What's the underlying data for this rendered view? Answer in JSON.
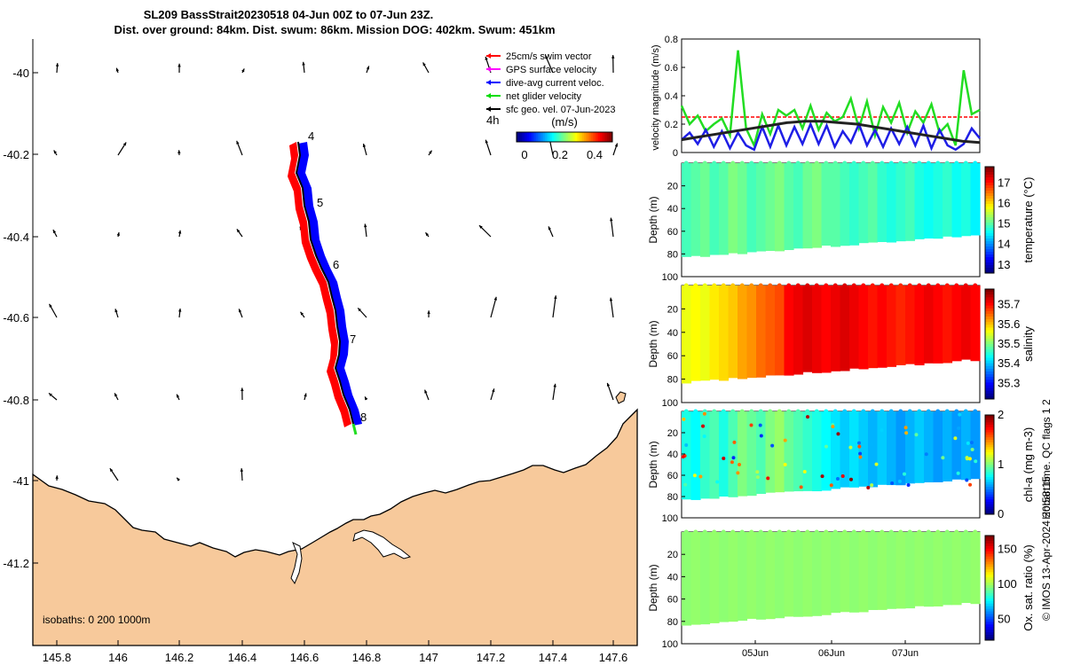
{
  "header": {
    "title_line1": "SL209 BassStrait20230518 04-Jun 00Z to 07-Jun 23Z.",
    "title_line2": "Dist. over ground: 84km. Dist. swum: 86km. Mission DOG: 402km. Swum: 451km"
  },
  "map": {
    "legend": [
      {
        "label": "25cm/s swim vector",
        "color": "#ff0000"
      },
      {
        "label": "GPS surface velocity",
        "color": "#ff00ff"
      },
      {
        "label": "dive-avg current veloc.",
        "color": "#0000ff"
      },
      {
        "label": "net glider velocity",
        "color": "#00dd00"
      },
      {
        "label": "sfc geo. vel. 07-Jun-2023",
        "color": "#000000"
      }
    ],
    "colorbar": {
      "interval": "4h",
      "units": "(m/s)",
      "ticks": [
        "0",
        "0.2",
        "0.4"
      ]
    },
    "day_markers": [
      "4",
      "5",
      "6",
      "7",
      "8"
    ],
    "x_ticks": [
      "145.8",
      "146",
      "146.2",
      "146.4",
      "146.6",
      "146.8",
      "147",
      "147.2",
      "147.4",
      "147.6"
    ],
    "y_ticks": [
      "-40",
      "-40.2",
      "-40.4",
      "-40.6",
      "-40.8",
      "-41",
      "-41.2"
    ],
    "isobaths": "isobaths: 0   200  1000m",
    "land_color": "#f7c99b"
  },
  "chart_data": [
    {
      "type": "line",
      "title": "velocity magnitude",
      "ylabel": "velocity magnitude (m/s)",
      "ylim": [
        0,
        0.8
      ],
      "yticks": [
        "0",
        "0.2",
        "0.4",
        "0.6",
        "0.8"
      ],
      "series": [
        {
          "name": "25cm/s reference",
          "color": "#ff0000",
          "values": [
            0.25,
            0.25
          ]
        },
        {
          "name": "net glider velocity",
          "color": "#22dd22",
          "values": [
            0.33,
            0.2,
            0.26,
            0.15,
            0.2,
            0.24,
            0.12,
            0.72,
            0.17,
            0.05,
            0.27,
            0.13,
            0.3,
            0.26,
            0.3,
            0.17,
            0.33,
            0.16,
            0.28,
            0.22,
            0.25,
            0.38,
            0.17,
            0.36,
            0.12,
            0.32,
            0.21,
            0.35,
            0.14,
            0.29,
            0.21,
            0.34,
            0.14,
            0.2,
            0.05,
            0.58,
            0.27,
            0.3
          ]
        },
        {
          "name": "dive-avg current",
          "color": "#1e1ee6",
          "values": [
            0.09,
            0.14,
            0.06,
            0.16,
            0.04,
            0.15,
            0.03,
            0.14,
            0.05,
            0.02,
            0.18,
            0.04,
            0.19,
            0.05,
            0.18,
            0.06,
            0.2,
            0.06,
            0.19,
            0.04,
            0.15,
            0.07,
            0.2,
            0.05,
            0.16,
            0.04,
            0.17,
            0.06,
            0.18,
            0.05,
            0.19,
            0.03,
            0.16,
            0.05,
            0.02,
            0.06,
            0.17,
            0.1
          ]
        },
        {
          "name": "sfc geo. vel.",
          "color": "#222222",
          "values": [
            0.09,
            0.11,
            0.13,
            0.15,
            0.17,
            0.19,
            0.21,
            0.22,
            0.22,
            0.21,
            0.2,
            0.18,
            0.16,
            0.14,
            0.12,
            0.1,
            0.08,
            0.07
          ]
        }
      ]
    },
    {
      "type": "heatmap",
      "title": "temperature",
      "ylabel": "Depth (m)",
      "yticks": [
        "20",
        "40",
        "60",
        "80",
        "100"
      ],
      "ylim": [
        100,
        0
      ],
      "clabel": "temperature (°C)",
      "cticks": [
        "13",
        "14",
        "15",
        "16",
        "17"
      ],
      "crange": [
        12.6,
        17.8
      ],
      "values": [
        14.9,
        15.0,
        15.1,
        14.9,
        15.0,
        15.2,
        15.1,
        14.9,
        15.0,
        15.1,
        15.2,
        15.0,
        14.9,
        15.1,
        15.2,
        15.0,
        15.0,
        14.9,
        14.8,
        14.9,
        15.0,
        14.8,
        14.7,
        14.8,
        14.9,
        14.7,
        14.6,
        14.7,
        14.8,
        14.6,
        14.7,
        14.5
      ]
    },
    {
      "type": "heatmap",
      "title": "salinity",
      "ylabel": "Depth (m)",
      "yticks": [
        "20",
        "40",
        "60",
        "80",
        "100"
      ],
      "ylim": [
        100,
        0
      ],
      "clabel": "salinity",
      "cticks": [
        "35.3",
        "35.4",
        "35.5",
        "35.6",
        "35.7"
      ],
      "crange": [
        35.22,
        35.78
      ],
      "values": [
        35.56,
        35.57,
        35.56,
        35.58,
        35.59,
        35.6,
        35.62,
        35.63,
        35.65,
        35.66,
        35.67,
        35.71,
        35.72,
        35.73,
        35.72,
        35.71,
        35.72,
        35.73,
        35.72,
        35.71,
        35.7,
        35.71,
        35.7,
        35.69,
        35.7,
        35.71,
        35.72,
        35.71,
        35.7,
        35.71,
        35.72,
        35.71
      ]
    },
    {
      "type": "scatter",
      "title": "chl-a",
      "ylabel": "Depth (m)",
      "yticks": [
        "20",
        "40",
        "60",
        "80",
        "100"
      ],
      "ylim": [
        100,
        0
      ],
      "clabel": "chl-a (mg m-3)",
      "cticks": [
        "0",
        "1",
        "2"
      ],
      "crange": [
        0,
        2
      ],
      "values": [
        0.8,
        0.75,
        0.85,
        0.9,
        0.8,
        0.9,
        1.0,
        0.95,
        0.9,
        1.0,
        1.05,
        0.95,
        0.9,
        0.85,
        0.8,
        0.75,
        0.7,
        0.65,
        0.7,
        0.65,
        0.6,
        0.65,
        0.6,
        0.55,
        0.6,
        0.65,
        0.6,
        0.55,
        0.6,
        0.55,
        0.6,
        0.55
      ]
    },
    {
      "type": "heatmap",
      "title": "oxygen saturation",
      "ylabel": "Depth (m)",
      "yticks": [
        "20",
        "40",
        "60",
        "80",
        "100"
      ],
      "ylim": [
        100,
        0
      ],
      "clabel": "Ox. sat. ratio (%)",
      "cticks": [
        "50",
        "100",
        "150"
      ],
      "crange": [
        20,
        170
      ],
      "xticks": [
        "05Jun",
        "06Jun",
        "07Jun"
      ],
      "values": [
        97,
        98,
        97,
        98,
        97,
        98,
        97,
        98,
        97,
        98,
        97,
        98,
        97,
        98,
        97,
        98,
        97,
        98,
        97,
        98,
        97,
        98,
        97,
        98,
        97,
        98,
        97,
        98,
        97,
        98,
        97,
        98
      ]
    }
  ],
  "footer": {
    "qc_label": "Hobart time. QC flags 1  2",
    "credit": "© IMOS 13-Apr-2024 20:58:15"
  }
}
